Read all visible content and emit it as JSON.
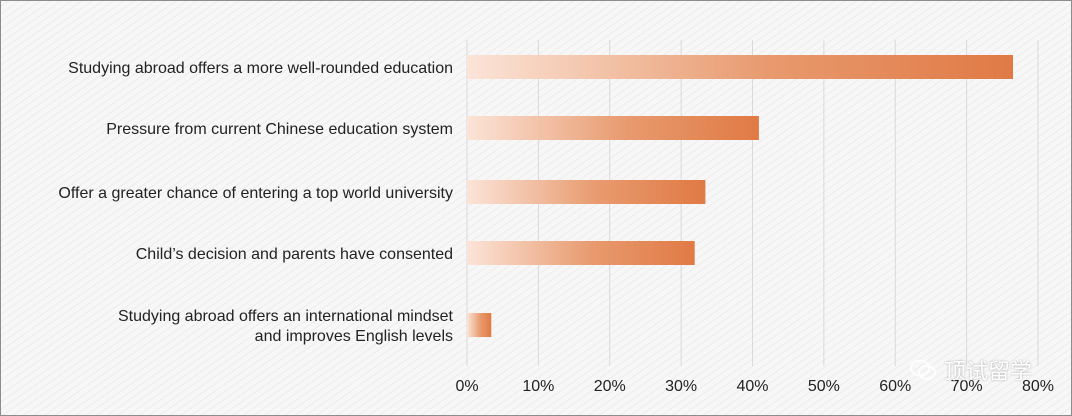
{
  "chart_data": {
    "type": "bar",
    "orientation": "horizontal",
    "categories": [
      [
        "Studying abroad offers a more well-rounded education"
      ],
      [
        "Pressure from current Chinese education system"
      ],
      [
        "Offer a greater chance of entering a top world university"
      ],
      [
        "Child’s decision and parents have consented"
      ],
      [
        "Studying abroad offers an international mindset",
        "and improves English levels"
      ]
    ],
    "values": [
      76.5,
      40.9,
      33.4,
      31.9,
      3.4
    ],
    "xlim": [
      0,
      80
    ],
    "xticks": [
      "0%",
      "10%",
      "20%",
      "30%",
      "40%",
      "50%",
      "60%",
      "70%",
      "80%"
    ],
    "title": "",
    "xlabel": "",
    "ylabel": "",
    "grid": "vertical",
    "bar_color": "#e07a45",
    "bar_color_light": "#fbe4d8"
  },
  "watermark": {
    "text": "顶试留学",
    "icon": "wechat-icon"
  }
}
